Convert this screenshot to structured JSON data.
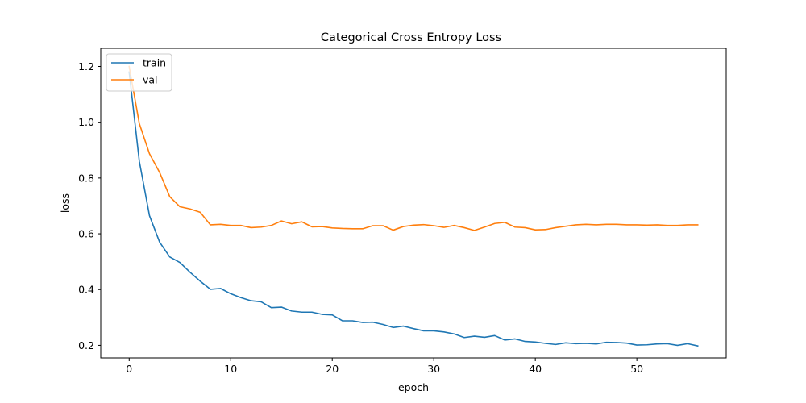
{
  "chart_data": {
    "type": "line",
    "title": "Categorical Cross Entropy Loss",
    "xlabel": "epoch",
    "ylabel": "loss",
    "xlim": [
      -2.8,
      58.8
    ],
    "ylim": [
      0.155,
      1.265
    ],
    "xticks": [
      0,
      10,
      20,
      30,
      40,
      50
    ],
    "yticks": [
      0.2,
      0.4,
      0.6,
      0.8,
      1.0,
      1.2
    ],
    "ytick_labels": [
      "0.2",
      "0.4",
      "0.6",
      "0.8",
      "1.0",
      "1.2"
    ],
    "grid": false,
    "legend": "top-left",
    "series": [
      {
        "name": "train",
        "color": "#1f77b4",
        "values": [
          1.18,
          0.86,
          0.665,
          0.57,
          0.517,
          0.497,
          0.462,
          0.43,
          0.401,
          0.404,
          0.385,
          0.371,
          0.36,
          0.356,
          0.335,
          0.337,
          0.323,
          0.319,
          0.319,
          0.311,
          0.309,
          0.288,
          0.288,
          0.282,
          0.283,
          0.275,
          0.264,
          0.269,
          0.26,
          0.252,
          0.252,
          0.248,
          0.241,
          0.228,
          0.233,
          0.229,
          0.235,
          0.219,
          0.223,
          0.214,
          0.212,
          0.207,
          0.203,
          0.209,
          0.206,
          0.207,
          0.205,
          0.211,
          0.21,
          0.208,
          0.201,
          0.202,
          0.205,
          0.206,
          0.2,
          0.206,
          0.198
        ]
      },
      {
        "name": "val",
        "color": "#ff7f0e",
        "values": [
          1.2,
          0.995,
          0.887,
          0.82,
          0.733,
          0.697,
          0.689,
          0.677,
          0.632,
          0.634,
          0.63,
          0.63,
          0.622,
          0.624,
          0.63,
          0.646,
          0.636,
          0.643,
          0.625,
          0.626,
          0.621,
          0.619,
          0.618,
          0.618,
          0.629,
          0.629,
          0.613,
          0.626,
          0.631,
          0.633,
          0.629,
          0.623,
          0.63,
          0.622,
          0.612,
          0.624,
          0.637,
          0.641,
          0.624,
          0.622,
          0.614,
          0.615,
          0.622,
          0.627,
          0.632,
          0.634,
          0.632,
          0.634,
          0.634,
          0.632,
          0.632,
          0.631,
          0.632,
          0.63,
          0.63,
          0.632,
          0.632
        ]
      }
    ]
  }
}
